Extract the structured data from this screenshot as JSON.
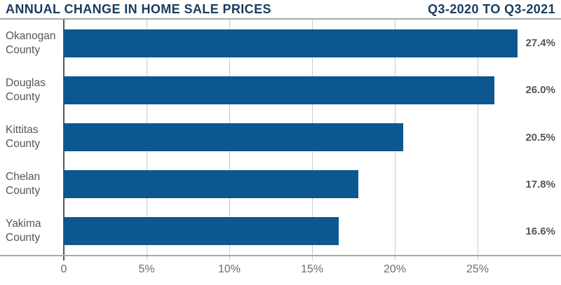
{
  "header": {
    "title": "ANNUAL CHANGE IN HOME SALE PRICES",
    "period": "Q3-2020 TO Q3-2021"
  },
  "chart_data": {
    "type": "bar",
    "orientation": "horizontal",
    "title": "ANNUAL CHANGE IN HOME SALE PRICES",
    "subtitle": "Q3-2020 TO Q3-2021",
    "categories": [
      "Okanogan\nCounty",
      "Douglas\nCounty",
      "Kittitas\nCounty",
      "Chelan\nCounty",
      "Yakima\nCounty"
    ],
    "values": [
      27.4,
      26.0,
      20.5,
      17.8,
      16.6
    ],
    "value_labels": [
      "27.4%",
      "26.0%",
      "20.5%",
      "17.8%",
      "16.6%"
    ],
    "xlabel": "",
    "ylabel": "",
    "xlim": [
      0,
      30
    ],
    "x_ticks": [
      {
        "value": 0,
        "label": "0"
      },
      {
        "value": 5,
        "label": "5%"
      },
      {
        "value": 10,
        "label": "10%"
      },
      {
        "value": 15,
        "label": "15%"
      },
      {
        "value": 20,
        "label": "20%"
      },
      {
        "value": 25,
        "label": "25%"
      }
    ],
    "grid": true,
    "legend": false,
    "colors": {
      "bar": "#0c578f",
      "title": "#1a3c5e",
      "category_label": "#55565a",
      "value_label": "#55565a",
      "tick_label": "#6d6e71",
      "gridline": "#c9cacb",
      "axis_line": "#a6a8ab",
      "zero_line": "#55565a"
    }
  }
}
